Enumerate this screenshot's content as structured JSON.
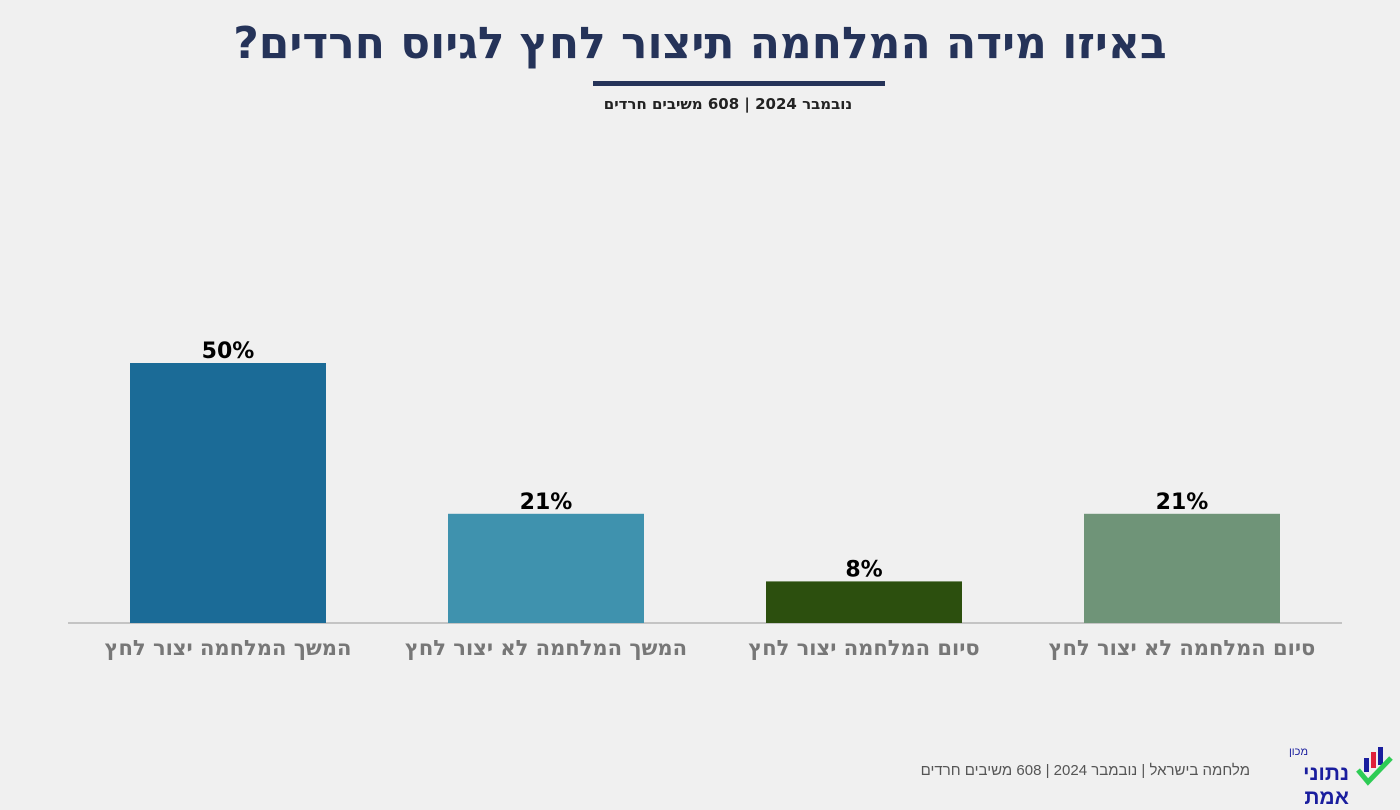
{
  "header": {
    "title": "באיזו מידה המלחמה תיצור לחץ לגיוס חרדים?",
    "subtitle": "נובמבר 2024 | 608 משיבים חרדים"
  },
  "chart_data": {
    "type": "bar",
    "categories": [
      "סיום המלחמה לא יצור לחץ",
      "סיום המלחמה יצור לחץ",
      "המשך המלחמה לא יצור לחץ",
      "המשך המלחמה יצור לחץ"
    ],
    "values": [
      21,
      8,
      21,
      50
    ],
    "data_labels": [
      "21%",
      "8%",
      "21%",
      "50%"
    ],
    "colors": [
      "#6f9478",
      "#2c4f0e",
      "#3f92ae",
      "#1b6b97"
    ],
    "title": "באיזו מידה המלחמה תיצור לחץ לגיוס חרדים?",
    "unit": "%",
    "ylim": [
      0,
      50
    ],
    "grid": false,
    "direction": "right-to-left"
  },
  "footer": {
    "source": "מלחמה בישראל | נובמבר 2024 | 608 משיבים חרדים",
    "logo_text": "נתוני אמת",
    "logo_small": "מכון"
  }
}
